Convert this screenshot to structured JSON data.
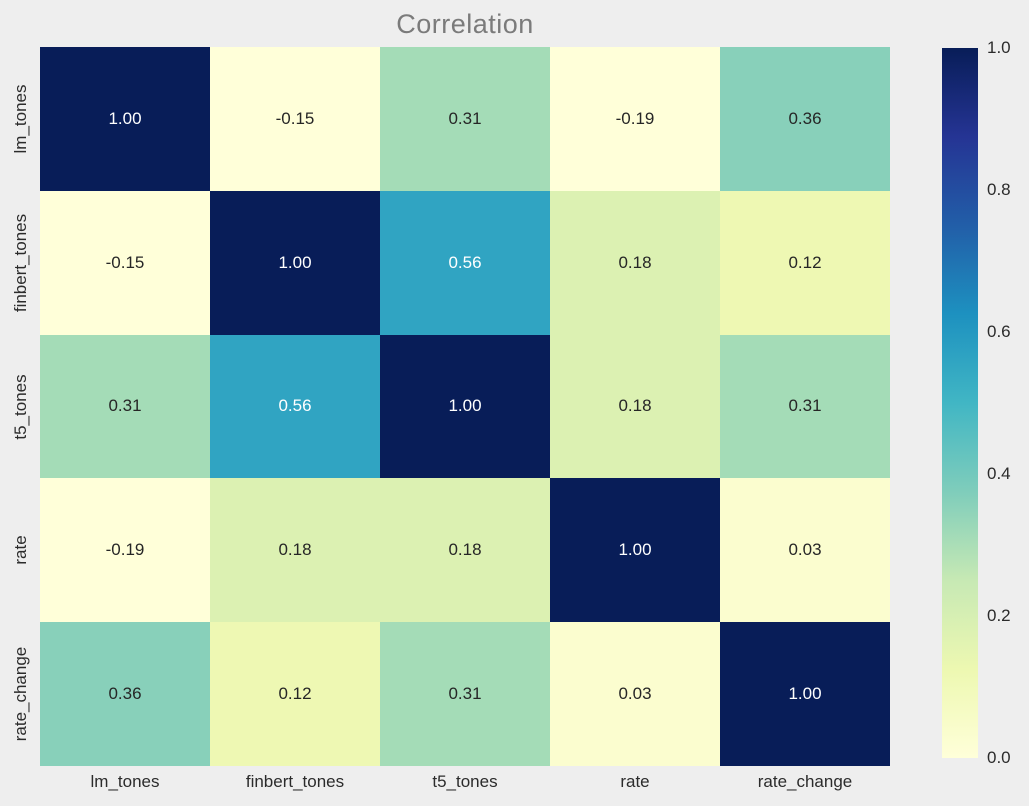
{
  "chart_data": {
    "type": "heatmap",
    "title": "Correlation",
    "categories": [
      "lm_tones",
      "finbert_tones",
      "t5_tones",
      "rate",
      "rate_change"
    ],
    "matrix": [
      [
        1.0,
        -0.15,
        0.31,
        -0.19,
        0.36
      ],
      [
        -0.15,
        1.0,
        0.56,
        0.18,
        0.12
      ],
      [
        0.31,
        0.56,
        1.0,
        0.18,
        0.31
      ],
      [
        -0.19,
        0.18,
        0.18,
        1.0,
        0.03
      ],
      [
        0.36,
        0.12,
        0.31,
        0.03,
        1.0
      ]
    ],
    "annotation_format": "0.00",
    "colormap": "YlGnBu",
    "colormap_anchors_low_to_high": [
      "#ffffd9",
      "#edf8b1",
      "#c7e9b4",
      "#7fcdbb",
      "#41b6c4",
      "#1d91c0",
      "#225ea8",
      "#253494",
      "#081d58"
    ],
    "color_scale": {
      "vmin": 0.0,
      "vmax": 1.0
    },
    "colorbar": {
      "position": "right",
      "tick_labels": [
        "1.0",
        "0.8",
        "0.6",
        "0.4",
        "0.2",
        "0.0"
      ]
    },
    "layout": {
      "grid": false,
      "legend": false,
      "cell_annotations": true
    },
    "colors": {
      "figure_background": "#eeeeee",
      "title_text": "#7b7b7b",
      "axis_tick_text": "#2b2b2b",
      "annotation_dark_text": "#262626",
      "annotation_light_text": "#ffffff"
    }
  }
}
